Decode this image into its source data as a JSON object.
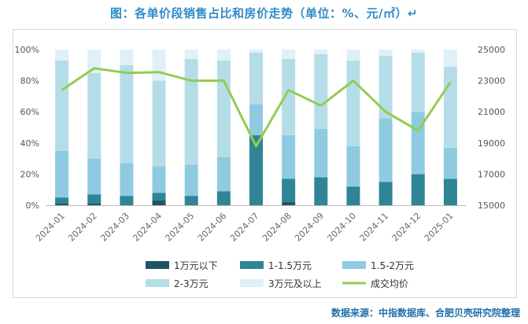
{
  "title": "图：各单价段销售占比和房价走势（单位：%、元/㎡）↵",
  "source": "数据来源：中指数据库、合肥贝壳研究院整理",
  "chart_data": {
    "type": "bar",
    "stacked": true,
    "categories": [
      "2024-01",
      "2024-02",
      "2024-03",
      "2024-04",
      "2024-05",
      "2024-06",
      "2024-07",
      "2024-08",
      "2024-09",
      "2024-10",
      "2024-11",
      "2024-12",
      "2025-01"
    ],
    "y_left": {
      "min": 0,
      "max": 100,
      "ticks": [
        "0%",
        "20%",
        "40%",
        "60%",
        "80%",
        "100%"
      ]
    },
    "y_right": {
      "min": 15000,
      "max": 25000,
      "ticks": [
        "15000",
        "17000",
        "19000",
        "21000",
        "23000",
        "25000"
      ]
    },
    "grid": false,
    "legend_position": "bottom",
    "series": [
      {
        "name": "1万元以下",
        "color": "#1e5566",
        "values": [
          1,
          1,
          0,
          3,
          0,
          0,
          0,
          2,
          0,
          0,
          0,
          0,
          0
        ]
      },
      {
        "name": "1-1.5万元",
        "color": "#2e8596",
        "values": [
          4,
          6,
          6,
          5,
          6,
          9,
          45,
          15,
          18,
          12,
          15,
          20,
          17
        ]
      },
      {
        "name": "1.5-2万元",
        "color": "#8fcbe0",
        "values": [
          30,
          23,
          21,
          17,
          20,
          22,
          20,
          28,
          31,
          26,
          41,
          40,
          20
        ]
      },
      {
        "name": "2-3万元",
        "color": "#b5dde8",
        "values": [
          58,
          55,
          63,
          55,
          68,
          62,
          33,
          49,
          48,
          55,
          40,
          38,
          52
        ]
      },
      {
        "name": "3万元及以上",
        "color": "#dff0f7",
        "values": [
          7,
          15,
          10,
          20,
          6,
          7,
          2,
          6,
          3,
          7,
          4,
          2,
          11
        ]
      }
    ],
    "line": {
      "name": "成交均价",
      "color": "#92cc54",
      "values": [
        22400,
        23800,
        23500,
        23550,
        23000,
        23000,
        18800,
        22400,
        21400,
        23000,
        21000,
        19800,
        22900
      ]
    }
  }
}
